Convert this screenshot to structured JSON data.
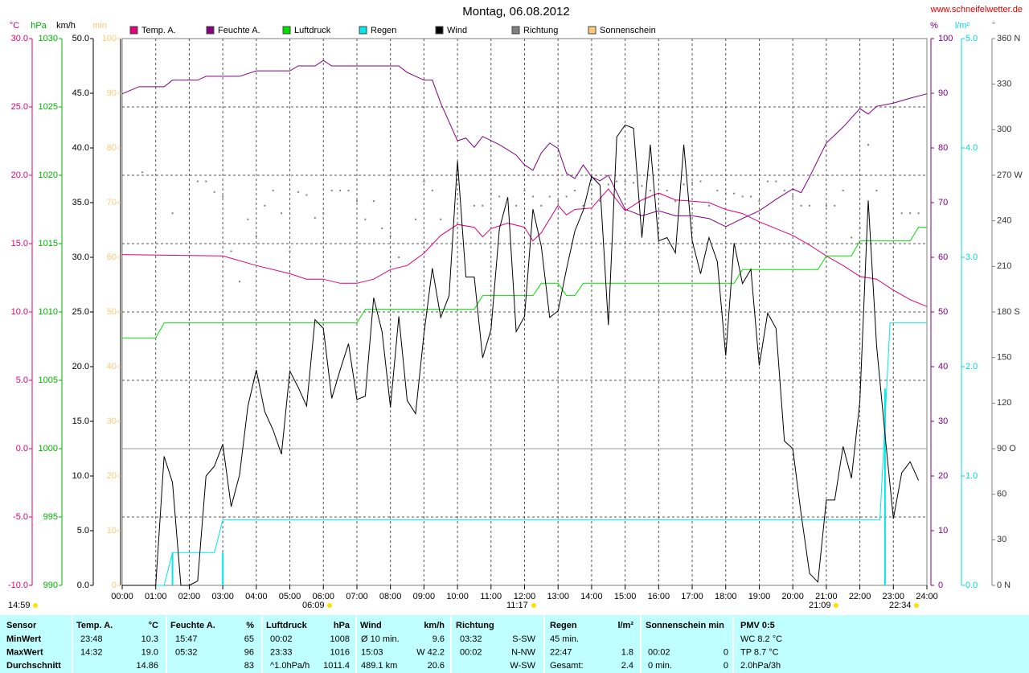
{
  "chart_data": {
    "type": "line",
    "title": "Montag, 06.08.2012",
    "source": "www.schneifelwetter.de",
    "grid": true,
    "xlim": [
      0,
      24
    ],
    "xticks": [
      {
        "value": 0,
        "label": "00:00"
      },
      {
        "value": 1,
        "label": "01:00"
      },
      {
        "value": 2,
        "label": "02:00"
      },
      {
        "value": 3,
        "label": "03:00"
      },
      {
        "value": 4,
        "label": "04:00"
      },
      {
        "value": 5,
        "label": "05:00"
      },
      {
        "value": 6,
        "label": "06:00"
      },
      {
        "value": 7,
        "label": "07:00"
      },
      {
        "value": 8,
        "label": "08:00"
      },
      {
        "value": 9,
        "label": "09:00"
      },
      {
        "value": 10,
        "label": "10:00"
      },
      {
        "value": 11,
        "label": "11:00"
      },
      {
        "value": 12,
        "label": "12:00"
      },
      {
        "value": 13,
        "label": "13:00"
      },
      {
        "value": 14,
        "label": "14:00"
      },
      {
        "value": 15,
        "label": "15:00"
      },
      {
        "value": 16,
        "label": "16:00"
      },
      {
        "value": 17,
        "label": "17:00"
      },
      {
        "value": 18,
        "label": "18:00"
      },
      {
        "value": 19,
        "label": "19:00"
      },
      {
        "value": 20,
        "label": "20:00"
      },
      {
        "value": 21,
        "label": "21:00"
      },
      {
        "value": 22,
        "label": "22:00"
      },
      {
        "value": 23,
        "label": "23:00"
      },
      {
        "value": 24,
        "label": "24:00"
      }
    ],
    "axes": [
      {
        "unit": "°C",
        "color": "#e0007a",
        "lim": [
          -10,
          30
        ],
        "ticks": [
          {
            "value": -10,
            "label": "-10.0"
          },
          {
            "value": -5,
            "label": "-5.0"
          },
          {
            "value": 0,
            "label": "0.0"
          },
          {
            "value": 5,
            "label": "5.0"
          },
          {
            "value": 10,
            "label": "10.0"
          },
          {
            "value": 15,
            "label": "15.0"
          },
          {
            "value": 20,
            "label": "20.0"
          },
          {
            "value": 25,
            "label": "25.0"
          },
          {
            "value": 30,
            "label": "30.0"
          }
        ]
      },
      {
        "unit": "hPa",
        "color": "#00b000",
        "lim": [
          990,
          1030
        ],
        "ticks": [
          990,
          995,
          1000,
          1005,
          1010,
          1015,
          1020,
          1025,
          1030
        ]
      },
      {
        "unit": "km/h",
        "color": "#000000",
        "lim": [
          0,
          50
        ],
        "ticks": [
          {
            "value": 0,
            "label": "0.0"
          },
          {
            "value": 5,
            "label": "5.0"
          },
          {
            "value": 10,
            "label": "10.0"
          },
          {
            "value": 15,
            "label": "15.0"
          },
          {
            "value": 20,
            "label": "20.0"
          },
          {
            "value": 25,
            "label": "25.0"
          },
          {
            "value": 30,
            "label": "30.0"
          },
          {
            "value": 35,
            "label": "35.0"
          },
          {
            "value": 40,
            "label": "40.0"
          },
          {
            "value": 45,
            "label": "45.0"
          },
          {
            "value": 50,
            "label": "50.0"
          }
        ]
      },
      {
        "unit": "min",
        "color": "#ffc878",
        "lim": [
          0,
          100
        ],
        "ticks": [
          0,
          10,
          20,
          30,
          40,
          50,
          60,
          70,
          80,
          90,
          100
        ]
      },
      {
        "unit": "%",
        "color": "#800080",
        "lim": [
          0,
          100
        ],
        "ticks": [
          0,
          10,
          20,
          30,
          40,
          50,
          60,
          70,
          80,
          90,
          100
        ]
      },
      {
        "unit": "l/m²",
        "color": "#00d8d8",
        "lim": [
          0,
          5
        ],
        "ticks": [
          {
            "value": 0,
            "label": "0.0"
          },
          {
            "value": 1,
            "label": "1.0"
          },
          {
            "value": 2,
            "label": "2.0"
          },
          {
            "value": 3,
            "label": "3.0"
          },
          {
            "value": 4,
            "label": "4.0"
          },
          {
            "value": 5,
            "label": "5.0"
          }
        ]
      },
      {
        "unit": "°",
        "color": "#808080",
        "lim": [
          0,
          360
        ],
        "ticks": [
          {
            "value": 0,
            "label": "0 N"
          },
          30,
          60,
          {
            "value": 90,
            "label": "90 O"
          },
          120,
          150,
          {
            "value": 180,
            "label": "180 S"
          },
          210,
          240,
          {
            "value": 270,
            "label": "270 W"
          },
          300,
          330,
          {
            "value": 360,
            "label": "360 N"
          }
        ]
      }
    ],
    "series": [
      {
        "name": "Temp. A.",
        "color": "#e0007a",
        "axis": 0,
        "type": "line",
        "x": [
          0,
          3,
          4,
          5,
          5.5,
          6,
          6.5,
          7,
          7.5,
          8,
          8.5,
          9,
          9.5,
          10,
          10.5,
          10.75,
          11,
          11.5,
          12,
          12.25,
          12.5,
          13,
          13.25,
          13.5,
          14,
          14.5,
          15,
          15.5,
          16,
          16.5,
          17,
          17.5,
          18,
          18.5,
          19,
          19.5,
          20,
          20.5,
          21,
          21.5,
          22,
          22.5,
          23,
          23.5,
          24
        ],
        "values": [
          14.2,
          14.1,
          13.4,
          12.8,
          12.4,
          12.4,
          12.1,
          12.1,
          12.4,
          13.1,
          13.4,
          14.3,
          15.6,
          16.4,
          16.2,
          15.5,
          16.1,
          16.5,
          16.2,
          15.2,
          15.8,
          17.8,
          17.1,
          17.5,
          17.6,
          19.0,
          17.4,
          18.2,
          18.7,
          18.2,
          18.1,
          18.0,
          17.5,
          17.2,
          16.6,
          16.1,
          15.6,
          14.9,
          14.1,
          13.4,
          12.6,
          12.4,
          11.6,
          10.9,
          10.4
        ]
      },
      {
        "name": "Feuchte A.",
        "color": "#800080",
        "axis": 4,
        "type": "line",
        "x": [
          0,
          0.5,
          1.25,
          1.5,
          2.25,
          2.5,
          3.5,
          4,
          5,
          5.25,
          5.75,
          6,
          6.25,
          8.25,
          8.5,
          9,
          9.25,
          9.5,
          10,
          10.25,
          10.5,
          10.75,
          11.25,
          11.75,
          12,
          12.25,
          12.5,
          12.75,
          13,
          13.25,
          13.5,
          13.75,
          14,
          14.25,
          14.5,
          15,
          15.5,
          16,
          16.5,
          17,
          17.5,
          18,
          18.5,
          19,
          19.5,
          20,
          20.25,
          20.5,
          21,
          21.5,
          22,
          22.25,
          22.5,
          23,
          23.5,
          24
        ],
        "values": [
          89.9,
          91.2,
          91.2,
          92.4,
          92.4,
          93.1,
          93.1,
          94.1,
          94.1,
          95.0,
          95.0,
          96.0,
          95.0,
          95.0,
          93.8,
          92.4,
          92.4,
          88.2,
          81.3,
          81.8,
          80.1,
          82.1,
          80.6,
          78.7,
          76.9,
          75.9,
          79.1,
          80.9,
          79.9,
          75.4,
          74.4,
          76.9,
          74.7,
          74.0,
          75.0,
          68.8,
          67.6,
          68.5,
          67.6,
          67.6,
          67.1,
          65.6,
          67.1,
          68.5,
          70.6,
          72.5,
          71.8,
          74.7,
          80.9,
          83.8,
          87.2,
          86.2,
          87.6,
          88.2,
          89.1,
          89.9
        ]
      },
      {
        "name": "Luftdruck",
        "color": "#00e000",
        "axis": 1,
        "type": "line",
        "x": [
          0,
          1,
          1.25,
          7,
          7.25,
          10.5,
          10.75,
          12.25,
          12.5,
          13,
          13.25,
          13.5,
          13.75,
          18.25,
          18.5,
          20.75,
          21,
          21.75,
          22,
          23.5,
          23.75,
          24
        ],
        "values": [
          1008.1,
          1008.1,
          1009.2,
          1009.2,
          1010.2,
          1010.2,
          1011.2,
          1011.2,
          1012.1,
          1012.1,
          1011.2,
          1011.2,
          1012.1,
          1012.1,
          1013.1,
          1013.1,
          1014.1,
          1014.1,
          1015.2,
          1015.2,
          1016.2,
          1016.2
        ]
      },
      {
        "name": "Regen",
        "color": "#00e8e8",
        "axis": 5,
        "type": "line",
        "x": [
          0,
          1.25,
          1.5,
          2.75,
          3,
          22.6,
          22.9,
          24
        ],
        "values": [
          0,
          0,
          0.3,
          0.3,
          0.6,
          0.6,
          2.4,
          2.4
        ]
      },
      {
        "name": "Wind",
        "color": "#000000",
        "axis": 2,
        "type": "line",
        "x": [
          0,
          1,
          1.25,
          1.5,
          1.75,
          2,
          2.25,
          2.5,
          2.75,
          3,
          3.25,
          3.5,
          3.75,
          4,
          4.25,
          4.5,
          4.75,
          5,
          5.25,
          5.5,
          5.75,
          6,
          6.25,
          6.5,
          6.75,
          7,
          7.25,
          7.5,
          7.75,
          8,
          8.25,
          8.5,
          8.75,
          9,
          9.25,
          9.5,
          9.75,
          10,
          10.25,
          10.5,
          10.75,
          11,
          11.25,
          11.5,
          11.75,
          12,
          12.25,
          12.5,
          12.75,
          13,
          13.25,
          13.5,
          13.75,
          14,
          14.25,
          14.5,
          14.75,
          15,
          15.25,
          15.5,
          15.75,
          16,
          16.25,
          16.5,
          16.75,
          17,
          17.25,
          17.5,
          17.75,
          18,
          18.25,
          18.5,
          18.75,
          19,
          19.25,
          19.5,
          19.75,
          20,
          20.25,
          20.5,
          20.75,
          21,
          21.25,
          21.5,
          21.75,
          22,
          22.25,
          22.5,
          22.75,
          23,
          23.25,
          23.5,
          23.75
        ],
        "values": [
          0,
          0,
          11.8,
          9.4,
          0,
          0,
          0.4,
          10.0,
          10.9,
          12.9,
          7.2,
          10.1,
          16.4,
          19.7,
          15.9,
          14.2,
          12.0,
          19.6,
          18.1,
          16.4,
          24.3,
          23.5,
          17.1,
          19.7,
          22.1,
          17.0,
          17.3,
          26.3,
          23.2,
          16.3,
          24.6,
          16.9,
          15.7,
          23.0,
          29.0,
          24.5,
          26.5,
          38.8,
          28.2,
          28.2,
          20.8,
          23.4,
          32.6,
          35.5,
          23.2,
          24.6,
          34.4,
          31.0,
          24.5,
          25.1,
          28.9,
          32.4,
          34.3,
          37.4,
          36.6,
          23.8,
          41.0,
          42.1,
          41.8,
          31.8,
          40.3,
          31.5,
          31.8,
          30.4,
          40.3,
          31.5,
          28.5,
          31.8,
          29.6,
          21.0,
          31.3,
          27.6,
          28.9,
          20.1,
          24.9,
          23.5,
          13.2,
          12.5,
          6.5,
          1.1,
          0.3,
          7.8,
          7.8,
          12.7,
          9.8,
          16.8,
          35.2,
          21.9,
          13.8,
          6.1,
          10.3,
          11.3,
          9.6
        ]
      },
      {
        "name": "Richtung",
        "color": "#808080",
        "axis": 6,
        "type": "scatter",
        "x": [
          0.6,
          1.5,
          2.25,
          2.5,
          2.75,
          3,
          3.25,
          3.5,
          3.75,
          4,
          4.25,
          4.5,
          4.75,
          5,
          5.25,
          5.5,
          5.75,
          6,
          6.25,
          6.5,
          6.75,
          7,
          7.25,
          7.5,
          7.75,
          8,
          8.25,
          8.75,
          9,
          9.25,
          9.5,
          10.5,
          10.75,
          11,
          11.25,
          11.5,
          11.75,
          12,
          12.25,
          12.5,
          12.75,
          13,
          13.25,
          13.5,
          13.75,
          14,
          14.25,
          14.5,
          14.75,
          15,
          15.25,
          15.5,
          15.75,
          16,
          16.25,
          16.5,
          16.75,
          17,
          17.25,
          17.5,
          17.75,
          18,
          18.25,
          18.5,
          18.75,
          19,
          19.25,
          19.5,
          19.75,
          20,
          20.25,
          20.5,
          21,
          21.25,
          21.5,
          21.75,
          22,
          22.25,
          22.5,
          23.25,
          23.5,
          23.75
        ],
        "values": [
          272,
          245,
          266,
          266,
          259,
          256,
          220,
          200,
          241,
          230,
          250,
          260,
          245,
          220,
          259,
          257,
          242,
          245,
          260,
          260,
          260,
          253,
          241,
          253,
          235,
          230,
          216,
          241,
          266,
          260,
          241,
          250,
          250,
          258,
          256,
          253,
          250,
          260,
          256,
          250,
          256,
          253,
          256,
          260,
          250,
          258,
          253,
          264,
          266,
          266,
          265,
          263,
          260,
          274,
          260,
          253,
          264,
          265,
          266,
          250,
          260,
          258,
          258,
          256,
          256,
          253,
          266,
          266,
          260,
          256,
          250,
          250,
          250,
          250,
          260,
          229,
          235,
          290,
          260,
          245,
          245,
          245
        ]
      },
      {
        "name": "Sonnenschein",
        "color": "#ffc878",
        "axis": 3,
        "type": "line",
        "x": [],
        "values": []
      }
    ],
    "rain_bars": {
      "color": "#00e8e8",
      "axis": 5,
      "x": [
        1.5,
        3,
        22.75
      ],
      "values": [
        0.3,
        0.3,
        1.8
      ]
    },
    "annotations": [
      "14:59",
      "06:09",
      "11:17",
      "21:09",
      "22:34"
    ]
  },
  "table": {
    "headers": [
      [
        "Sensor",
        null
      ],
      [
        "Temp. A.",
        "°C"
      ],
      [
        "Feuchte A.",
        "%"
      ],
      [
        "Luftdruck",
        "hPa"
      ],
      [
        "Wind",
        "km/h"
      ],
      [
        "Richtung",
        null
      ],
      [
        "Regen",
        "l/m²"
      ],
      [
        "Sonnenschein min",
        null
      ],
      [
        "PMV 0:5",
        null
      ]
    ],
    "rows": [
      {
        "label": "MinWert",
        "cells": [
          [
            "23:48",
            "10.3"
          ],
          [
            "15:47",
            "65"
          ],
          [
            "00:02",
            "1008"
          ],
          [
            "Ø 10 min.",
            "9.6"
          ],
          [
            "03:32",
            "S-SW"
          ],
          [
            "45 min.",
            null
          ],
          [
            null,
            null
          ],
          [
            "WC 8.2 °C",
            null
          ]
        ]
      },
      {
        "label": "MaxWert",
        "cells": [
          [
            "14:32",
            "19.0"
          ],
          [
            "05:32",
            "96"
          ],
          [
            "23:33",
            "1016"
          ],
          [
            "15:03",
            "W 42.2"
          ],
          [
            "00:02",
            "N-NW"
          ],
          [
            "22:47",
            "1.8"
          ],
          [
            "00:02",
            "0"
          ],
          [
            "TP 8.7 °C",
            null
          ]
        ]
      },
      {
        "label": "Durchschnitt",
        "cells": [
          [
            null,
            "14.86"
          ],
          [
            null,
            "83"
          ],
          [
            "^1.0hPa/h",
            "1011.4"
          ],
          [
            "489.1 km",
            "20.6"
          ],
          [
            null,
            "W-SW"
          ],
          [
            "Gesamt:",
            "2.4"
          ],
          [
            "0 min.",
            "0"
          ],
          [
            "2.0hPa/3h",
            null
          ]
        ]
      }
    ]
  }
}
